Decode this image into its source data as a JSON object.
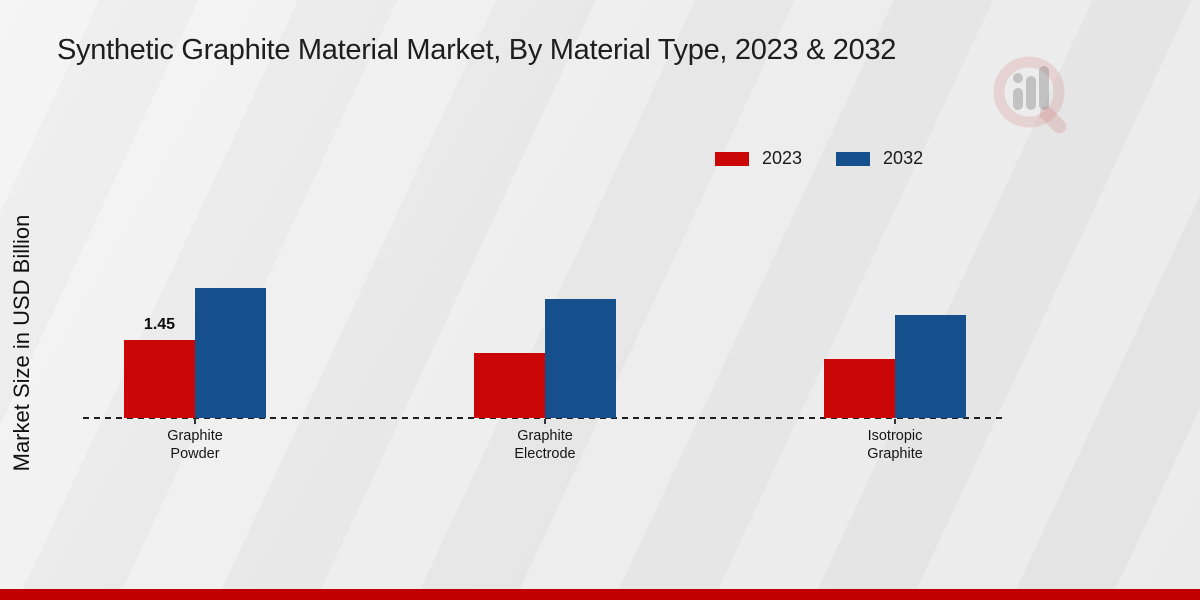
{
  "title": "Synthetic Graphite Material Market, By Material Type, 2023 & 2032",
  "ylabel": "Market Size in USD Billion",
  "legend": {
    "items": [
      {
        "label": "2023",
        "color": "#cb0606"
      },
      {
        "label": "2032",
        "color": "#15508d"
      }
    ]
  },
  "chart_data": {
    "type": "bar",
    "categories": [
      "Graphite Powder",
      "Graphite Electrode",
      "Isotropic Graphite"
    ],
    "category_label_lines": [
      [
        "Graphite",
        "Powder"
      ],
      [
        "Graphite",
        "Electrode"
      ],
      [
        "Isotropic",
        "Graphite"
      ]
    ],
    "series": [
      {
        "name": "2023",
        "color": "#cb0606",
        "values": [
          1.45,
          1.2,
          1.1
        ]
      },
      {
        "name": "2032",
        "color": "#15508d",
        "values": [
          2.4,
          2.2,
          1.9
        ]
      }
    ],
    "bar_labels": [
      {
        "series": "2023",
        "category": "Graphite Powder",
        "text": "1.45"
      }
    ],
    "title": "Synthetic Graphite Material Market, By Material Type, 2023 & 2032",
    "xlabel": "",
    "ylabel": "Market Size in USD Billion",
    "ylim": [
      0,
      2.6
    ],
    "grid": false,
    "legend_position": "top-right",
    "baseline_style": "dashed",
    "axis_ticks_visible": true
  },
  "watermark": {
    "name": "magnifier-bar-chart-logo"
  },
  "footer": {
    "accent_color": "#c00000"
  }
}
